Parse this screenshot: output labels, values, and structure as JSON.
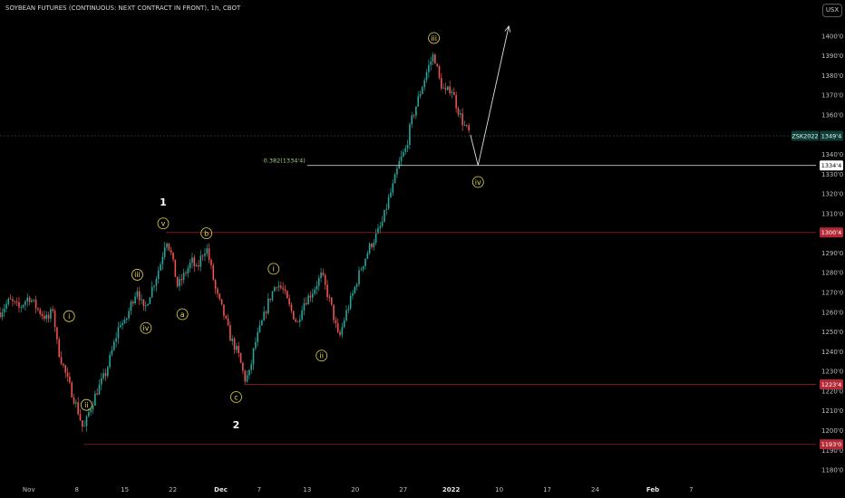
{
  "header": {
    "title": "SOYBEAN FUTURES (CONTINUOUS: NEXT CONTRACT IN FRONT), 1h, CBOT",
    "currency": "USX"
  },
  "colors": {
    "background": "#000000",
    "up": "#26a69a",
    "down": "#ef5350",
    "wave_label": "#e8d84a",
    "level_line": "#8b1e2a",
    "fib_line": "#c8c8c8",
    "arrow": "#e0e0e0"
  },
  "chart_data": {
    "type": "candlestick",
    "xlabel": "",
    "ylabel": "",
    "ylim": [
      1175,
      1410
    ],
    "xlim": [
      -5,
      80
    ],
    "y_ticks": [
      "1400'0",
      "1390'0",
      "1380'0",
      "1370'0",
      "1360'0",
      "1340'0",
      "1330'0",
      "1320'0",
      "1310'0",
      "1290'0",
      "1280'0",
      "1270'0",
      "1260'0",
      "1250'0",
      "1240'0",
      "1230'0",
      "1220'0",
      "1210'0",
      "1200'0",
      "1190'0",
      "1180'0"
    ],
    "y_tick_values": [
      1400,
      1390,
      1380,
      1370,
      1360,
      1340,
      1330,
      1320,
      1310,
      1290,
      1280,
      1270,
      1260,
      1250,
      1240,
      1230,
      1220,
      1210,
      1200,
      1190,
      1180
    ],
    "x_ticks": [
      {
        "label": "Nov",
        "x": -2
      },
      {
        "label": "8",
        "x": 3
      },
      {
        "label": "15",
        "x": 8
      },
      {
        "label": "22",
        "x": 13
      },
      {
        "label": "Dec",
        "x": 18
      },
      {
        "label": "7",
        "x": 22
      },
      {
        "label": "13",
        "x": 27
      },
      {
        "label": "20",
        "x": 32
      },
      {
        "label": "27",
        "x": 37
      },
      {
        "label": "2022",
        "x": 42
      },
      {
        "label": "10",
        "x": 47
      },
      {
        "label": "17",
        "x": 52
      },
      {
        "label": "24",
        "x": 57
      },
      {
        "label": "Feb",
        "x": 63
      },
      {
        "label": "7",
        "x": 67
      }
    ],
    "bold_x_ticks": [
      "Dec",
      "2022",
      "Feb"
    ],
    "price_path": [
      {
        "x": -5.0,
        "y": 1260
      },
      {
        "x": -4.0,
        "y": 1266
      },
      {
        "x": -3.0,
        "y": 1262
      },
      {
        "x": -2.0,
        "y": 1268
      },
      {
        "x": -1.0,
        "y": 1261
      },
      {
        "x": 0.0,
        "y": 1256
      },
      {
        "x": 0.5,
        "y": 1262
      },
      {
        "x": 1.0,
        "y": 1242
      },
      {
        "x": 2.0,
        "y": 1226
      },
      {
        "x": 3.0,
        "y": 1212
      },
      {
        "x": 3.7,
        "y": 1200
      },
      {
        "x": 4.3,
        "y": 1210
      },
      {
        "x": 5.0,
        "y": 1219
      },
      {
        "x": 6.0,
        "y": 1229
      },
      {
        "x": 7.0,
        "y": 1246
      },
      {
        "x": 7.5,
        "y": 1255
      },
      {
        "x": 8.0,
        "y": 1254
      },
      {
        "x": 8.7,
        "y": 1265
      },
      {
        "x": 9.3,
        "y": 1272
      },
      {
        "x": 10.0,
        "y": 1260
      },
      {
        "x": 10.5,
        "y": 1268
      },
      {
        "x": 11.2,
        "y": 1277
      },
      {
        "x": 11.8,
        "y": 1286
      },
      {
        "x": 12.3,
        "y": 1298
      },
      {
        "x": 12.8,
        "y": 1290
      },
      {
        "x": 13.5,
        "y": 1273
      },
      {
        "x": 14.2,
        "y": 1279
      },
      {
        "x": 15.0,
        "y": 1286
      },
      {
        "x": 15.5,
        "y": 1281
      },
      {
        "x": 16.0,
        "y": 1289
      },
      {
        "x": 16.5,
        "y": 1293
      },
      {
        "x": 17.0,
        "y": 1282
      },
      {
        "x": 17.5,
        "y": 1270
      },
      {
        "x": 18.3,
        "y": 1259
      },
      {
        "x": 19.0,
        "y": 1247
      },
      {
        "x": 19.8,
        "y": 1239
      },
      {
        "x": 20.5,
        "y": 1226
      },
      {
        "x": 21.0,
        "y": 1229
      },
      {
        "x": 21.5,
        "y": 1243
      },
      {
        "x": 22.5,
        "y": 1258
      },
      {
        "x": 23.0,
        "y": 1266
      },
      {
        "x": 23.8,
        "y": 1275
      },
      {
        "x": 24.5,
        "y": 1271
      },
      {
        "x": 25.2,
        "y": 1262
      },
      {
        "x": 26.0,
        "y": 1254
      },
      {
        "x": 26.5,
        "y": 1264
      },
      {
        "x": 27.5,
        "y": 1270
      },
      {
        "x": 28.5,
        "y": 1279
      },
      {
        "x": 29.5,
        "y": 1263
      },
      {
        "x": 30.3,
        "y": 1246
      },
      {
        "x": 31.0,
        "y": 1259
      },
      {
        "x": 31.8,
        "y": 1270
      },
      {
        "x": 32.5,
        "y": 1281
      },
      {
        "x": 33.5,
        "y": 1293
      },
      {
        "x": 34.2,
        "y": 1299
      },
      {
        "x": 34.8,
        "y": 1305
      },
      {
        "x": 35.4,
        "y": 1316
      },
      {
        "x": 36.0,
        "y": 1325
      },
      {
        "x": 36.6,
        "y": 1336
      },
      {
        "x": 37.3,
        "y": 1343
      },
      {
        "x": 37.8,
        "y": 1356
      },
      {
        "x": 38.3,
        "y": 1364
      },
      {
        "x": 39.0,
        "y": 1375
      },
      {
        "x": 39.6,
        "y": 1384
      },
      {
        "x": 40.2,
        "y": 1391
      },
      {
        "x": 40.8,
        "y": 1377
      },
      {
        "x": 41.4,
        "y": 1371
      },
      {
        "x": 42.0,
        "y": 1374
      },
      {
        "x": 42.6,
        "y": 1364
      },
      {
        "x": 43.3,
        "y": 1355
      },
      {
        "x": 44.0,
        "y": 1350
      }
    ],
    "horizontal_levels": [
      {
        "price": 1300.4,
        "label": "1300'4",
        "x_start": 12.3,
        "color": "#8b1e2a",
        "tag_color": "#b32a36"
      },
      {
        "price": 1223.4,
        "label": "1223'4",
        "x_start": 20.5,
        "color": "#8b1e2a",
        "tag_color": "#b32a36"
      },
      {
        "price": 1193.0,
        "label": "1193'0",
        "x_start": 3.7,
        "color": "#8b1e2a",
        "tag_color": "#b32a36"
      }
    ],
    "fib_level": {
      "price": 1334.4,
      "label": "0.382(1334'4)",
      "axis_label": "1334'4",
      "x_start": 27.0
    },
    "current_price": {
      "symbol": "ZSK2022",
      "price": 1349.4,
      "label": "1349'4"
    },
    "projection": [
      {
        "x": 44.0,
        "y": 1350
      },
      {
        "x": 44.8,
        "y": 1334.4
      },
      {
        "x": 48.0,
        "y": 1405
      }
    ],
    "wave_labels": [
      {
        "text": "i",
        "x": 2.2,
        "y": 1258,
        "style": "circle"
      },
      {
        "text": "ii",
        "x": 4.0,
        "y": 1213,
        "style": "circle"
      },
      {
        "text": "iii",
        "x": 9.3,
        "y": 1279,
        "style": "circle"
      },
      {
        "text": "iv",
        "x": 10.2,
        "y": 1252,
        "style": "circle"
      },
      {
        "text": "v",
        "x": 12.0,
        "y": 1305,
        "style": "circle"
      },
      {
        "text": "1",
        "x": 12.0,
        "y": 1316,
        "style": "plain"
      },
      {
        "text": "a",
        "x": 14.0,
        "y": 1259,
        "style": "circle"
      },
      {
        "text": "b",
        "x": 16.5,
        "y": 1300,
        "style": "circle"
      },
      {
        "text": "c",
        "x": 19.6,
        "y": 1217,
        "style": "circle"
      },
      {
        "text": "2",
        "x": 19.6,
        "y": 1203,
        "style": "plain"
      },
      {
        "text": "i",
        "x": 23.5,
        "y": 1282,
        "style": "circle"
      },
      {
        "text": "ii",
        "x": 28.5,
        "y": 1238,
        "style": "circle"
      },
      {
        "text": "iii",
        "x": 40.2,
        "y": 1399,
        "style": "circle"
      },
      {
        "text": "iv",
        "x": 44.8,
        "y": 1326,
        "style": "circle"
      }
    ]
  }
}
